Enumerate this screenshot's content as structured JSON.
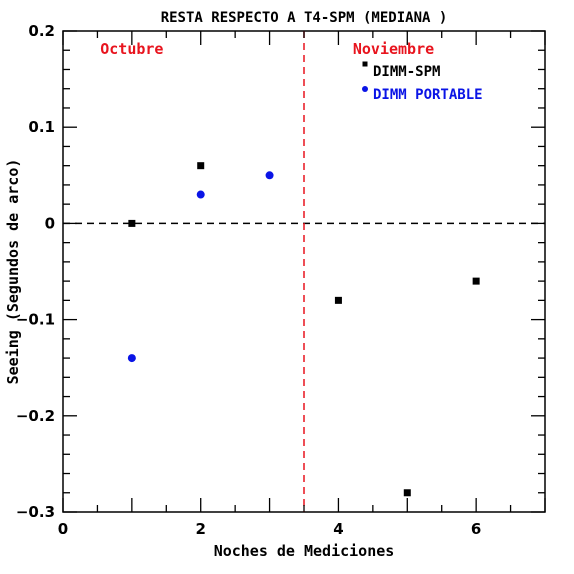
{
  "chart_data": {
    "type": "scatter",
    "title": "RESTA RESPECTO A T4-SPM (MEDIANA )",
    "xlabel": "Noches de Mediciones",
    "ylabel": "Seeing (Segundos de arco)",
    "xlim": [
      0,
      7
    ],
    "ylim": [
      -0.3,
      0.2
    ],
    "xticks": [
      0,
      2,
      4,
      6
    ],
    "xtick_labels": [
      "0",
      "2",
      "4",
      "6"
    ],
    "yticks": [
      -0.3,
      -0.2,
      -0.1,
      0,
      0.1,
      0.2
    ],
    "ytick_labels": [
      "−0.3",
      "−0.2",
      "−0.1",
      "0",
      "0.1",
      "0.2"
    ],
    "grid": false,
    "legend_position": "top-right",
    "reference_lines": [
      {
        "axis": "y",
        "value": 0,
        "color": "#000000",
        "style": "dashed"
      },
      {
        "axis": "x",
        "value": 3.5,
        "color": "#e8141e",
        "style": "dashed"
      }
    ],
    "annotations": [
      {
        "text": "Octubre",
        "color": "#e8141e"
      },
      {
        "text": "Noviembre",
        "color": "#e8141e"
      }
    ],
    "series": [
      {
        "name": "DIMM-SPM",
        "marker": "square",
        "color": "#000000",
        "x": [
          1,
          2,
          4,
          5,
          6
        ],
        "y": [
          0.0,
          0.06,
          -0.08,
          -0.28,
          -0.06
        ]
      },
      {
        "name": "DIMM PORTABLE",
        "marker": "circle",
        "color": "#0a14e6",
        "x": [
          1,
          2,
          3
        ],
        "y": [
          -0.14,
          0.03,
          0.05
        ]
      }
    ]
  }
}
